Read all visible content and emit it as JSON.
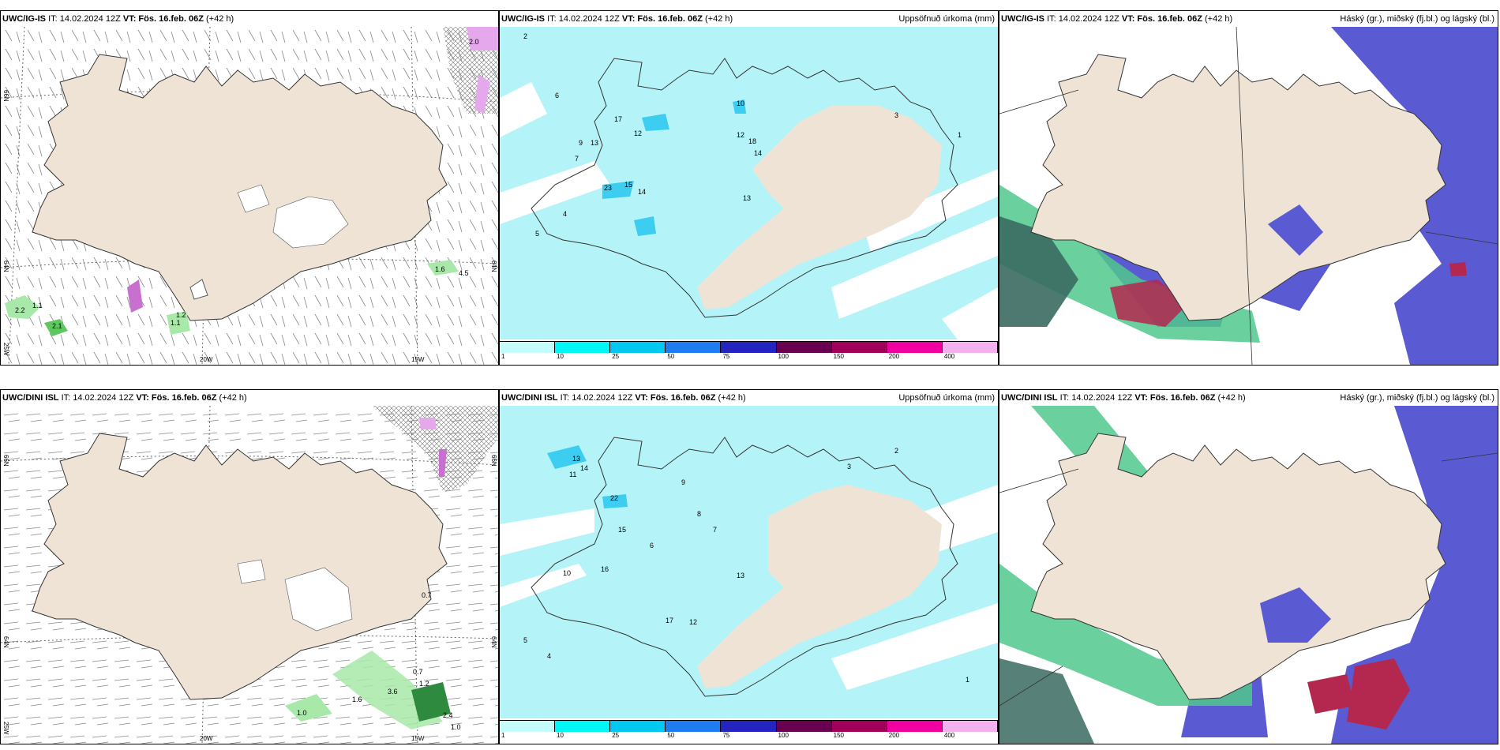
{
  "rows": [
    {
      "model": "UWC/IG-IS",
      "it": "IT: 14.02.2024 12Z",
      "vt": "VT: Fös. 16.feb. 06Z",
      "lead": "(+42 h)"
    },
    {
      "model": "UWC/DINI ISL",
      "it": "IT: 14.02.2024 12Z",
      "vt": "VT: Fös. 16.feb. 06Z",
      "lead": "(+42 h)"
    }
  ],
  "panels": {
    "precip_title": "Uppsöfnuð úrkoma (mm)",
    "cloud_title": "Háský (gr.), miðský (fj.bl.) og lágský (bl.)"
  },
  "axis_labels": {
    "lat66": "66N",
    "lat64": "64N",
    "lon25": "25W",
    "lon20": "20W",
    "lon15": "15W"
  },
  "colorbar": {
    "ticks": [
      "1",
      "10",
      "25",
      "50",
      "75",
      "100",
      "150",
      "200",
      "400"
    ],
    "colors": [
      "#c6fbfb",
      "#00f5f5",
      "#00c8f0",
      "#1e7bf0",
      "#2424c0",
      "#6a0050",
      "#a0005a",
      "#f000a0",
      "#f5b0f0"
    ]
  },
  "colors": {
    "land": "#efe3d6",
    "precip_light": "#b4f4f8",
    "precip_mid": "#3ccdf0",
    "cloud_high": "#50c88c",
    "cloud_mid": "#5a5ad2",
    "cloud_low": "#b42850"
  },
  "wind_values_row1": [
    "1.1",
    "2.2",
    "2.1",
    "1.1",
    "1.2",
    "1.6",
    "4.5",
    "2.0"
  ],
  "wind_values_row2": [
    "1.0",
    "0.7",
    "1.2",
    "0.7",
    "1.0",
    "2.4",
    "1.6",
    "3.6"
  ],
  "precip_values_row1": [
    "13",
    "17",
    "12",
    "15",
    "23",
    "14",
    "13",
    "10",
    "12",
    "18",
    "14",
    "9",
    "7",
    "6",
    "5",
    "4",
    "3",
    "2",
    "1"
  ],
  "precip_values_row2": [
    "13",
    "14",
    "11",
    "22",
    "15",
    "16",
    "10",
    "17",
    "12",
    "13",
    "9",
    "8",
    "7",
    "6",
    "5",
    "4",
    "3",
    "2",
    "1"
  ]
}
